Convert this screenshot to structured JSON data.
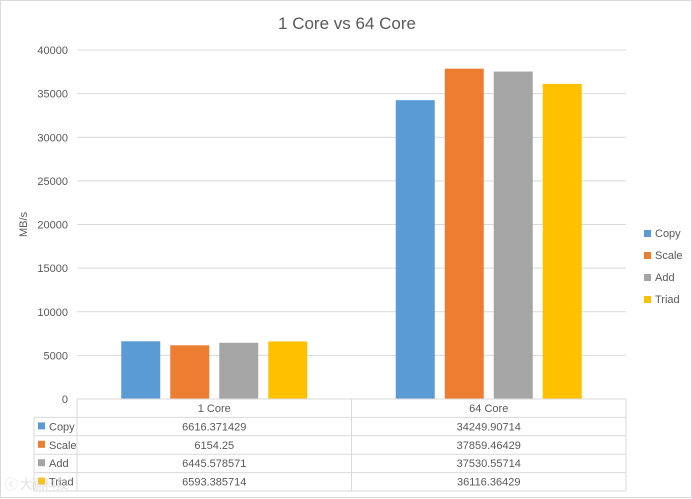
{
  "chart_data": {
    "type": "bar",
    "title": "1 Core vs 64 Core",
    "xlabel": "",
    "ylabel": "MB/s",
    "categories": [
      "1 Core",
      "64 Core"
    ],
    "ylim": [
      0,
      40000
    ],
    "yticks": [
      0,
      5000,
      10000,
      15000,
      20000,
      25000,
      30000,
      35000,
      40000
    ],
    "grid": true,
    "legend": "right",
    "data_table": true,
    "series": [
      {
        "name": "Copy",
        "color": "#5b9bd5",
        "values": [
          6616.371429,
          34249.90714
        ],
        "labels": [
          "6616.371429",
          "34249.90714"
        ]
      },
      {
        "name": "Scale",
        "color": "#ed7d31",
        "values": [
          6154.25,
          37859.46429
        ],
        "labels": [
          "6154.25",
          "37859.46429"
        ]
      },
      {
        "name": "Add",
        "color": "#a5a5a5",
        "values": [
          6445.578571,
          37530.55714
        ],
        "labels": [
          "6445.578571",
          "37530.55714"
        ]
      },
      {
        "name": "Triad",
        "color": "#ffc000",
        "values": [
          6593.385714,
          36116.36429
        ],
        "labels": [
          "6593.385714",
          "36116.36429"
        ]
      }
    ]
  }
}
